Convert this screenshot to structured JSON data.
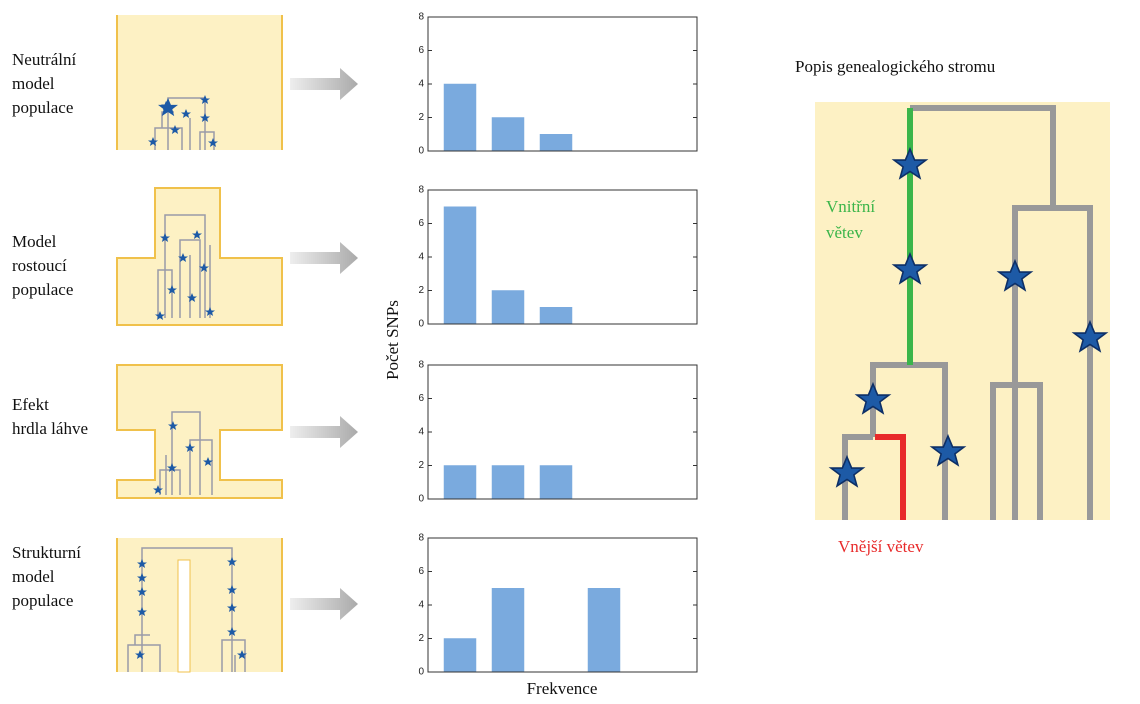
{
  "models": [
    {
      "label": [
        "Neutrální",
        "model",
        "populace"
      ]
    },
    {
      "label": [
        "Model",
        "rostoucí",
        "populace"
      ]
    },
    {
      "label": [
        "Efekt",
        "hrdla láhve"
      ]
    },
    {
      "label": [
        "Strukturní",
        "model",
        "populace"
      ]
    }
  ],
  "chart_data": [
    {
      "type": "bar",
      "categories": [
        null,
        null,
        null,
        null,
        null
      ],
      "values": [
        4,
        2,
        1,
        0,
        0
      ],
      "color": "#7aaade",
      "ylim": [
        0,
        8
      ],
      "yticks": [
        0,
        2,
        4,
        6,
        8
      ]
    },
    {
      "type": "bar",
      "categories": [
        null,
        null,
        null,
        null,
        null
      ],
      "values": [
        7,
        2,
        1,
        0,
        0
      ],
      "color": "#7aaade",
      "ylim": [
        0,
        8
      ],
      "yticks": [
        0,
        2,
        4,
        6,
        8
      ]
    },
    {
      "type": "bar",
      "categories": [
        null,
        null,
        null,
        null,
        null
      ],
      "values": [
        2,
        2,
        2,
        0,
        0
      ],
      "color": "#7aaade",
      "ylim": [
        0,
        8
      ],
      "yticks": [
        0,
        2,
        4,
        6,
        8
      ]
    },
    {
      "type": "bar",
      "categories": [
        null,
        null,
        null,
        null,
        null
      ],
      "values": [
        2,
        5,
        0,
        5,
        0
      ],
      "color": "#7aaade",
      "ylim": [
        0,
        8
      ],
      "yticks": [
        0,
        2,
        4,
        6,
        8
      ]
    }
  ],
  "axes": {
    "ylabel": "Počet SNPs",
    "xlabel": "Frekvence"
  },
  "tree": {
    "title": "Popis genealogického stromu",
    "inner_branch": [
      "Vnitřní",
      "větev"
    ],
    "outer_branch": "Vnější větev"
  }
}
